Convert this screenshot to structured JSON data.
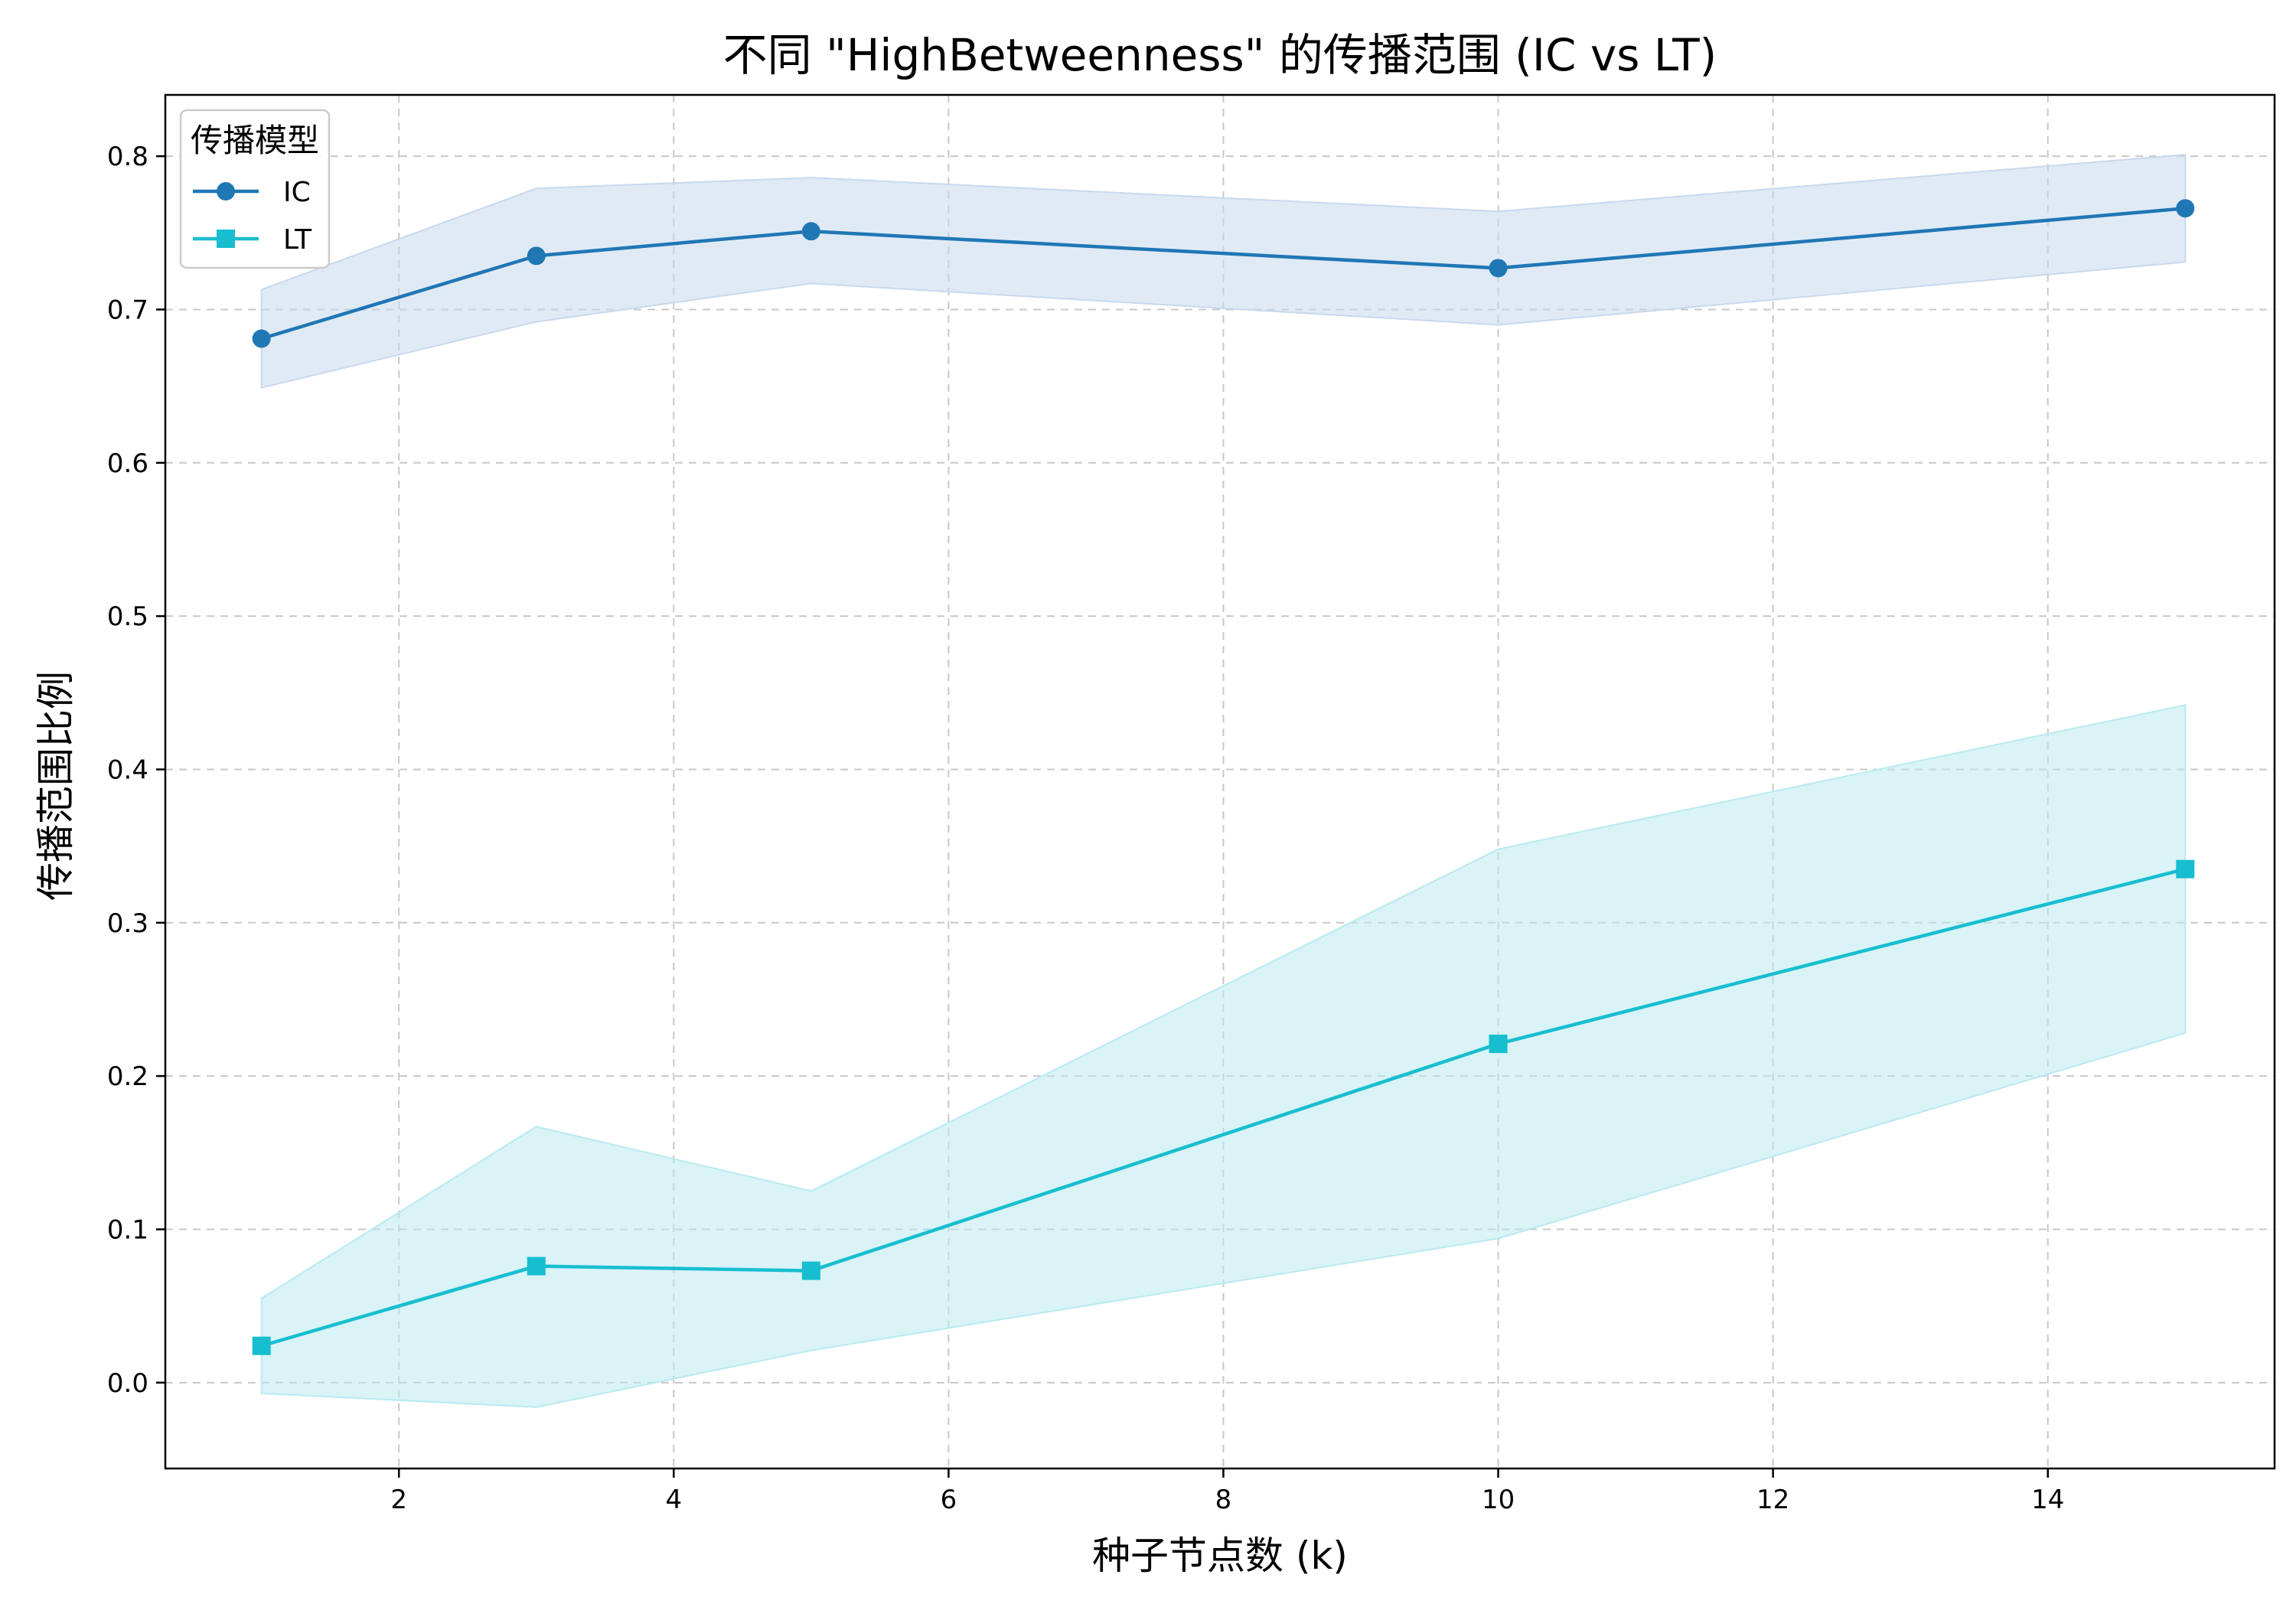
{
  "chart_data": {
    "type": "line",
    "title": "不同 \"HighBetweenness\" 的传播范围 (IC vs LT)",
    "xlabel": "种子节点数 (k)",
    "ylabel": "传播范围比例",
    "xlim": [
      0.3,
      15.65
    ],
    "ylim": [
      -0.056,
      0.84
    ],
    "xticks": [
      2,
      4,
      6,
      8,
      10,
      12,
      14
    ],
    "yticks": [
      0.0,
      0.1,
      0.2,
      0.3,
      0.4,
      0.5,
      0.6,
      0.7,
      0.8
    ],
    "ytick_labels": [
      "0.0",
      "0.1",
      "0.2",
      "0.3",
      "0.4",
      "0.5",
      "0.6",
      "0.7",
      "0.8"
    ],
    "grid": true,
    "legend": {
      "title": "传播模型",
      "position": "upper-left"
    },
    "series": [
      {
        "name": "IC",
        "marker": "circle",
        "color": "#1f77b4",
        "band_color": "#c7d9ec",
        "x": [
          1,
          3,
          5,
          10,
          15
        ],
        "y": [
          0.681,
          0.735,
          0.751,
          0.727,
          0.766
        ],
        "y_upper": [
          0.713,
          0.779,
          0.786,
          0.764,
          0.801
        ],
        "y_lower": [
          0.649,
          0.692,
          0.717,
          0.69,
          0.731
        ]
      },
      {
        "name": "LT",
        "marker": "square",
        "color": "#17becf",
        "band_color": "#b9eaf0",
        "x": [
          1,
          3,
          5,
          10,
          15
        ],
        "y": [
          0.024,
          0.076,
          0.073,
          0.221,
          0.335
        ],
        "y_upper": [
          0.055,
          0.167,
          0.125,
          0.348,
          0.442
        ],
        "y_lower": [
          -0.007,
          -0.016,
          0.021,
          0.094,
          0.228
        ]
      }
    ]
  }
}
